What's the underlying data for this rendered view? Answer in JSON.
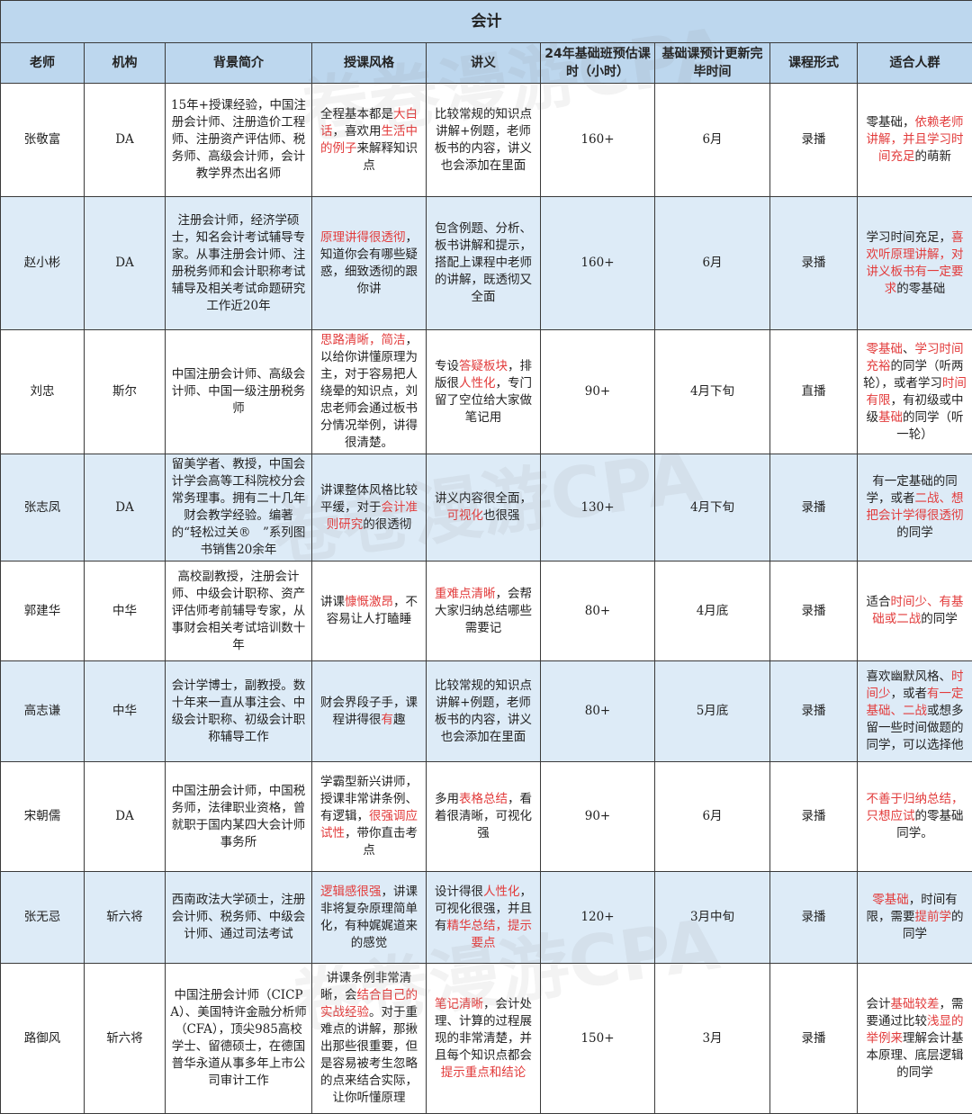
{
  "title": "会计",
  "watermark": "卷卷漫游CPA",
  "colors": {
    "header_bg": "#bdd7ee",
    "alt_row_bg": "#ddebf7",
    "highlight": "#e23b3b"
  },
  "headers": [
    "老师",
    "机构",
    "背景简介",
    "授课风格",
    "讲义",
    "24年基础班预估课时（小时）",
    "基础课预计更新完毕时间",
    "课程形式",
    "适合人群"
  ],
  "rows": [
    {
      "teacher": "张敬富",
      "org": "DA",
      "bg": [
        {
          "t": "15年+授课经验，中国注册会计师、注册造价工程师、注册资产评估师、税务师、高级会计师，会计教学界杰出名师"
        }
      ],
      "style": [
        {
          "t": "全程基本都是"
        },
        {
          "t": "大白话",
          "red": true
        },
        {
          "t": "，喜欢用"
        },
        {
          "t": "生活中的例子",
          "red": true
        },
        {
          "t": "来解释知识点"
        }
      ],
      "notes": [
        {
          "t": "比较常规的知识点讲解+例题，老师板书的内容，讲义也会添加在里面"
        }
      ],
      "hours": "160+",
      "finish": "6月",
      "form": "录播",
      "target": [
        {
          "t": "零基础，"
        },
        {
          "t": "依赖老师讲解，并且学习时间充足",
          "red": true
        },
        {
          "t": "的萌新"
        }
      ]
    },
    {
      "teacher": "赵小彬",
      "org": "DA",
      "bg": [
        {
          "t": "注册会计师，经济学硕士，知名会计考试辅导专家。从事注册会计师、注册税务师和会计职称考试辅导及相关考试命题研究工作近20年"
        }
      ],
      "style": [
        {
          "t": "原理讲得很透彻",
          "red": true
        },
        {
          "t": "，知道你会有哪些疑惑，细致透彻的跟你讲"
        }
      ],
      "notes": [
        {
          "t": "包含例题、分析、板书讲解和提示，搭配上课程中老师的讲解，既透彻又全面"
        }
      ],
      "hours": "160+",
      "finish": "6月",
      "form": "录播",
      "target": [
        {
          "t": "学习时间充足，"
        },
        {
          "t": "喜欢听原理讲解，对讲义板书有一定要求",
          "red": true
        },
        {
          "t": "的零基础"
        }
      ]
    },
    {
      "teacher": "刘忠",
      "org": "斯尔",
      "bg": [
        {
          "t": "中国注册会计师、高级会计师、中国一级注册税务师"
        }
      ],
      "style": [
        {
          "t": "思路清晰，简洁",
          "red": true
        },
        {
          "t": "，以给你讲懂原理为主，对于容易把人绕晕的知识点，刘忠老师会通过板书分情况举例，讲得很清楚。"
        }
      ],
      "notes": [
        {
          "t": "专设"
        },
        {
          "t": "答疑板块",
          "red": true
        },
        {
          "t": "，排版很"
        },
        {
          "t": "人性化",
          "red": true
        },
        {
          "t": "，专门留了空位给大家做笔记用"
        }
      ],
      "hours": "90+",
      "finish": "4月下旬",
      "form": "直播",
      "target": [
        {
          "t": "零基础",
          "red": true
        },
        {
          "t": "、"
        },
        {
          "t": "学习时间充裕",
          "red": true
        },
        {
          "t": "的同学（听两轮），或者学习"
        },
        {
          "t": "时间有限",
          "red": true
        },
        {
          "t": "，有初级或中级"
        },
        {
          "t": "基础",
          "red": true
        },
        {
          "t": "的同学（听一轮）"
        }
      ]
    },
    {
      "teacher": "张志凤",
      "org": "DA",
      "bg": [
        {
          "t": "留美学者、教授，中国会计学会高等工科院校分会常务理事。拥有二十几年财会教学经验。编著的“轻松过关®　”系列图书销售20余年"
        }
      ],
      "style": [
        {
          "t": "讲课整体风格比较平缓，对于"
        },
        {
          "t": "会计准则研究",
          "red": true
        },
        {
          "t": "的很透彻"
        }
      ],
      "notes": [
        {
          "t": "讲义内容很全面，"
        },
        {
          "t": "可视化",
          "red": true
        },
        {
          "t": "也很强"
        }
      ],
      "hours": "130+",
      "finish": "4月下旬",
      "form": "录播",
      "target": [
        {
          "t": "有一定基础的同学，或者"
        },
        {
          "t": "二战、想把会计学得很透彻",
          "red": true
        },
        {
          "t": "的同学"
        }
      ]
    },
    {
      "teacher": "郭建华",
      "org": "中华",
      "bg": [
        {
          "t": "高校副教授，注册会计师、中级会计职称、资产评估师考前辅导专家，从事财会相关考试培训数十年"
        }
      ],
      "style": [
        {
          "t": "讲课"
        },
        {
          "t": "慷慨激昂",
          "red": true
        },
        {
          "t": "，不容易让人打瞌睡"
        }
      ],
      "notes": [
        {
          "t": "重难点清晰",
          "red": true
        },
        {
          "t": "，会帮大家归纳总结哪些需要记"
        }
      ],
      "hours": "80+",
      "finish": "4月底",
      "form": "录播",
      "target": [
        {
          "t": "适合"
        },
        {
          "t": "时间少、有基础或二战",
          "red": true
        },
        {
          "t": "的同学"
        }
      ]
    },
    {
      "teacher": "高志谦",
      "org": "中华",
      "bg": [
        {
          "t": "会计学博士，副教授。数十年来一直从事注会、中级会计职称、初级会计职称辅导工作"
        }
      ],
      "style": [
        {
          "t": "财会界段子手，课程讲得很"
        },
        {
          "t": "有",
          "red": true
        },
        {
          "t": "趣"
        }
      ],
      "notes": [
        {
          "t": "比较常规的知识点讲解+例题，老师板书的内容，讲义也会添加在里面"
        }
      ],
      "hours": "80+",
      "finish": "5月底",
      "form": "录播",
      "target": [
        {
          "t": "喜欢幽默风格、"
        },
        {
          "t": "时间少",
          "red": true
        },
        {
          "t": "，或者"
        },
        {
          "t": "有一定基础、二战",
          "red": true
        },
        {
          "t": "或想多留一些时间做题的同学，可以选择他"
        }
      ]
    },
    {
      "teacher": "宋朝儒",
      "org": "DA",
      "bg": [
        {
          "t": "中国注册会计师，中国税务师，法律职业资格，曾就职于国内某四大会计师事务所"
        }
      ],
      "style": [
        {
          "t": "学霸型新兴讲师，授课非常讲条例、有逻辑，"
        },
        {
          "t": "很强调应试性",
          "red": true
        },
        {
          "t": "，带你直击考点"
        }
      ],
      "notes": [
        {
          "t": "多用"
        },
        {
          "t": "表格总结",
          "red": true
        },
        {
          "t": "，看着很清晰，可视化强"
        }
      ],
      "hours": "90+",
      "finish": "6月",
      "form": "录播",
      "target": [
        {
          "t": "不善于归纳总结，只想应试",
          "red": true
        },
        {
          "t": "的零基础同学。"
        }
      ]
    },
    {
      "teacher": "张无忌",
      "org": "斩六将",
      "bg": [
        {
          "t": "西南政法大学硕士，注册会计师、税务师、中级会计师、通过司法考试"
        }
      ],
      "style": [
        {
          "t": "逻辑感很强",
          "red": true
        },
        {
          "t": "，讲课非将复杂原理简单化，有种娓娓道来的感觉"
        }
      ],
      "notes": [
        {
          "t": "设计得很"
        },
        {
          "t": "人性化",
          "red": true
        },
        {
          "t": "，可视化很强，并且有"
        },
        {
          "t": "精华总结，提示要点",
          "red": true
        }
      ],
      "hours": "120+",
      "finish": "3月中旬",
      "form": "录播",
      "target": [
        {
          "t": "零基础",
          "red": true
        },
        {
          "t": "，时间有限，需要"
        },
        {
          "t": "提前学",
          "red": true
        },
        {
          "t": "的同学"
        }
      ]
    },
    {
      "teacher": "路御风",
      "org": "斩六将",
      "bg": [
        {
          "t": "中国注册会计师（CICPA）、美国特许金融分析师（CFA），顶尖985高校学士、留德硕士，在德国普华永道从事多年上市公司审计工作"
        }
      ],
      "style": [
        {
          "t": "讲课条例非常清晰，会"
        },
        {
          "t": "结合自己的实战经验",
          "red": true
        },
        {
          "t": "。对于重难点的讲解，那揪出那些很重要，但是容易被考生忽略的点来结合实际，让你听懂原理"
        }
      ],
      "notes": [
        {
          "t": "笔记清晰",
          "red": true
        },
        {
          "t": "，会计处理、计算的过程展现的非常清楚，并且每个知识点都会"
        },
        {
          "t": "提示重点和结论",
          "red": true
        }
      ],
      "hours": "150+",
      "finish": "3月",
      "form": "录播",
      "target": [
        {
          "t": "会计"
        },
        {
          "t": "基础较差",
          "red": true
        },
        {
          "t": "，需要通过比较"
        },
        {
          "t": "浅显的举例来",
          "red": true
        },
        {
          "t": "理解会计基本原理、底层逻辑的同学"
        }
      ]
    }
  ]
}
